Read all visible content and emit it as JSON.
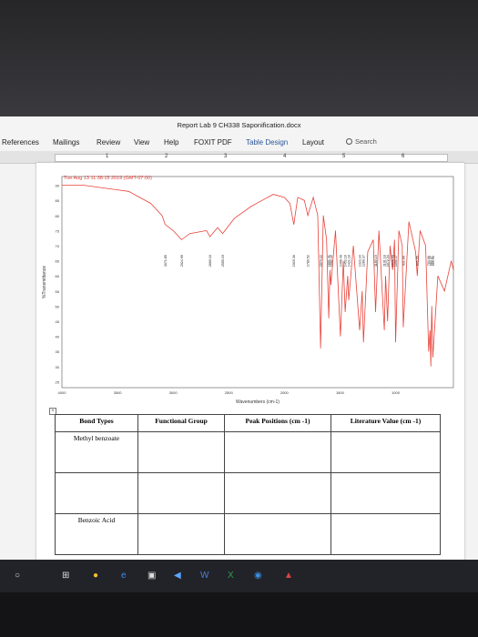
{
  "window": {
    "title": "Report Lab 9 CH338 Saponification.docx"
  },
  "ribbon": {
    "tabs": [
      "References",
      "Mailings",
      "Review",
      "View",
      "Help",
      "FOXIT PDF",
      "Table Design",
      "Layout"
    ],
    "active_tab": "Table Design",
    "search_label": "Search"
  },
  "ruler": {
    "numbers": [
      "1",
      "2",
      "3",
      "4",
      "5",
      "6"
    ]
  },
  "spectrum": {
    "header": "Tue Aug 13 11:38:15 2019 (GMT-07:00)",
    "ylabel": "%Transmittance",
    "xlabel": "Wavenumbers (cm-1)",
    "y_ticks": [
      "90",
      "85",
      "80",
      "75",
      "70",
      "65",
      "60",
      "55",
      "50",
      "45",
      "40",
      "35",
      "30",
      "25"
    ],
    "x_ticks": [
      "4000",
      "3500",
      "3000",
      "2500",
      "2000",
      "1500",
      "1000"
    ],
    "line_color": "#e8433a",
    "peak_labels": [
      "3071.85",
      "2924.99",
      "2669.10",
      "2555.19",
      "1915.36",
      "1789.52",
      "1674.22",
      "1601.41",
      "1582.42",
      "1496.40",
      "1453.10",
      "1421.10",
      "1323.34",
      "1289.37",
      "1180.19",
      "1101.18",
      "1072.34",
      "1026.59",
      "1000.37",
      "931.69",
      "805.55",
      "703.66",
      "683.37",
      "665.90"
    ]
  },
  "table": {
    "headers": [
      "Bond Types",
      "Functional Group",
      "Peak Positions (cm -1)",
      "Literature Value (cm -1)"
    ],
    "row_labels": [
      "Methyl benzoate",
      "Benzoic Acid"
    ]
  },
  "taskbar": {
    "items": [
      "start-circle-icon",
      "task-view-icon",
      "chrome-icon",
      "edge-icon",
      "store-icon",
      "mail-icon",
      "word-icon",
      "excel-icon",
      "browser-icon",
      "pdf-icon"
    ]
  }
}
